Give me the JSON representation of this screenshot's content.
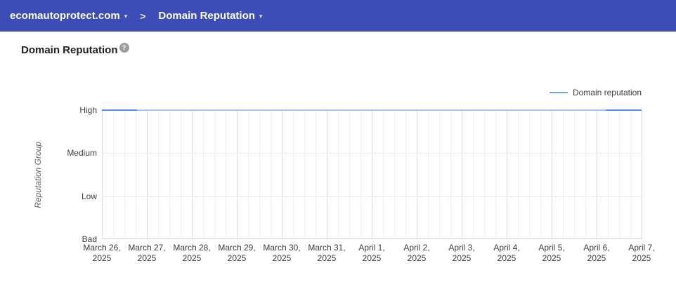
{
  "header": {
    "bg_color": "#3d4db7",
    "domain_dropdown": {
      "label": "ecomautoprotect.com",
      "caret": "▾"
    },
    "separator": ">",
    "section_dropdown": {
      "label": "Domain Reputation",
      "caret": "▾"
    }
  },
  "page": {
    "title": "Domain Reputation",
    "help_icon": "?"
  },
  "chart_data": {
    "type": "line",
    "title": "Domain Reputation",
    "ylabel": "Reputation Group",
    "y_categories": [
      "Bad",
      "Low",
      "Medium",
      "High"
    ],
    "x": [
      "March 26, 2025",
      "March 27, 2025",
      "March 28, 2025",
      "March 29, 2025",
      "March 30, 2025",
      "March 31, 2025",
      "April 1, 2025",
      "April 2, 2025",
      "April 3, 2025",
      "April 4, 2025",
      "April 5, 2025",
      "April 6, 2025",
      "April 7, 2025"
    ],
    "series": [
      {
        "name": "Domain reputation",
        "values": [
          "High",
          "High",
          "High",
          "High",
          "High",
          "High",
          "High",
          "High",
          "High",
          "High",
          "High",
          "High",
          "High"
        ]
      }
    ],
    "minor_gridlines_per_interval": 3,
    "grid": true,
    "legend_position": "top-right",
    "line_color": "#a6c5f7",
    "line_emphasis_color": "#5b8ce8",
    "legend_swatch_color": "#7ba0e4"
  }
}
